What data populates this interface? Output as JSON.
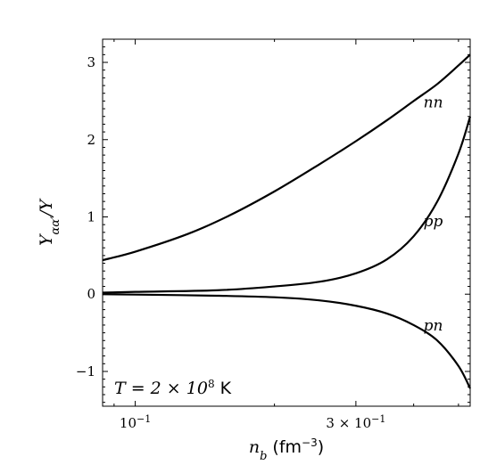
{
  "chart_data": {
    "type": "line",
    "xscale": "log",
    "xlim": [
      0.085,
      0.53
    ],
    "ylim": [
      -1.45,
      3.3
    ],
    "grid": false,
    "xlabel": {
      "var": "n",
      "sub": "b",
      "unit_open": " (fm",
      "unit_exp": "−3",
      "unit_close": ")"
    },
    "ylabel": {
      "var": "Y",
      "sub": "αα′",
      "tail": "/Y"
    },
    "x_ticks": [
      {
        "value": 0.1,
        "base": "10",
        "exp": "−1"
      },
      {
        "value": 0.3,
        "base": "3 × 10",
        "exp": "−1"
      }
    ],
    "y_ticks": [
      {
        "value": -1,
        "label": "−1"
      },
      {
        "value": 0,
        "label": "0"
      },
      {
        "value": 1,
        "label": "1"
      },
      {
        "value": 2,
        "label": "2"
      },
      {
        "value": 3,
        "label": "3"
      }
    ],
    "annotation": {
      "prefix": "T = 2 × 10",
      "exp": "8",
      "unit": " K"
    },
    "series": [
      {
        "name": "nn",
        "label_at": [
          0.42,
          2.42
        ],
        "points": [
          [
            0.085,
            0.44
          ],
          [
            0.1,
            0.55
          ],
          [
            0.13,
            0.78
          ],
          [
            0.16,
            1.02
          ],
          [
            0.2,
            1.33
          ],
          [
            0.25,
            1.68
          ],
          [
            0.3,
            1.98
          ],
          [
            0.35,
            2.25
          ],
          [
            0.4,
            2.5
          ],
          [
            0.45,
            2.72
          ],
          [
            0.5,
            2.96
          ],
          [
            0.53,
            3.1
          ]
        ]
      },
      {
        "name": "pp",
        "label_at": [
          0.42,
          0.88
        ],
        "points": [
          [
            0.085,
            0.02
          ],
          [
            0.1,
            0.03
          ],
          [
            0.15,
            0.05
          ],
          [
            0.2,
            0.1
          ],
          [
            0.25,
            0.16
          ],
          [
            0.3,
            0.27
          ],
          [
            0.35,
            0.45
          ],
          [
            0.4,
            0.75
          ],
          [
            0.45,
            1.2
          ],
          [
            0.5,
            1.82
          ],
          [
            0.53,
            2.3
          ]
        ]
      },
      {
        "name": "pn",
        "label_at": [
          0.42,
          -0.47
        ],
        "points": [
          [
            0.085,
            0.0
          ],
          [
            0.1,
            -0.005
          ],
          [
            0.15,
            -0.02
          ],
          [
            0.2,
            -0.04
          ],
          [
            0.25,
            -0.08
          ],
          [
            0.3,
            -0.15
          ],
          [
            0.35,
            -0.25
          ],
          [
            0.4,
            -0.4
          ],
          [
            0.45,
            -0.6
          ],
          [
            0.5,
            -0.93
          ],
          [
            0.53,
            -1.22
          ]
        ]
      }
    ]
  }
}
